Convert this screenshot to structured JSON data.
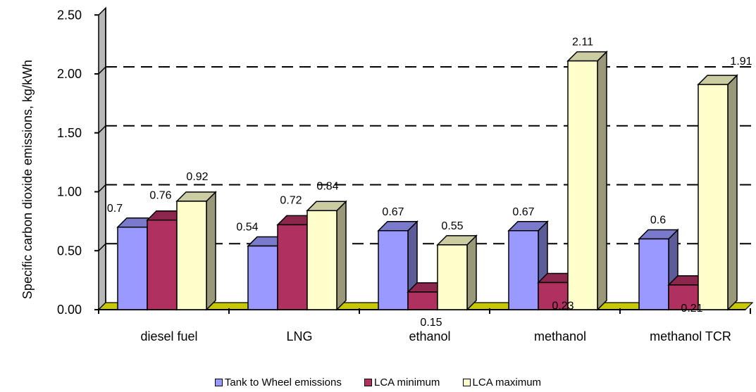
{
  "chart_data": {
    "type": "bar",
    "title": "",
    "xlabel": "",
    "ylabel": "Specific carbon dioxide emissions, kg/kWh",
    "ylim": [
      0,
      2.5
    ],
    "yticks": [
      "0.00",
      "0.50",
      "1.00",
      "1.50",
      "2.00",
      "2.50"
    ],
    "categories": [
      "diesel fuel",
      "LNG",
      "ethanol",
      "methanol",
      "methanol TCR"
    ],
    "series": [
      {
        "name": "Tank to Wheel emissions",
        "values": [
          0.7,
          0.54,
          0.67,
          0.67,
          0.6
        ],
        "labels": [
          "0.7",
          "0.54",
          "0.67",
          "0.67",
          "0.6"
        ],
        "color": "#9999ff"
      },
      {
        "name": "LCA minimum",
        "values": [
          0.76,
          0.72,
          0.15,
          0.23,
          0.21
        ],
        "labels": [
          "0.76",
          "0.72",
          "0.15",
          "0.23",
          "0.21"
        ],
        "color": "#b03060"
      },
      {
        "name": "LCA maximum",
        "values": [
          0.92,
          0.84,
          0.55,
          2.11,
          1.91
        ],
        "labels": [
          "0.92",
          "0.84",
          "0.55",
          "2.11",
          "1.91"
        ],
        "color": "#ffffcc"
      }
    ],
    "grid": true,
    "grid_style": "dashed",
    "legend_position": "bottom",
    "wall_color": "#b8b8b8",
    "floor_color": "#c8c800"
  }
}
